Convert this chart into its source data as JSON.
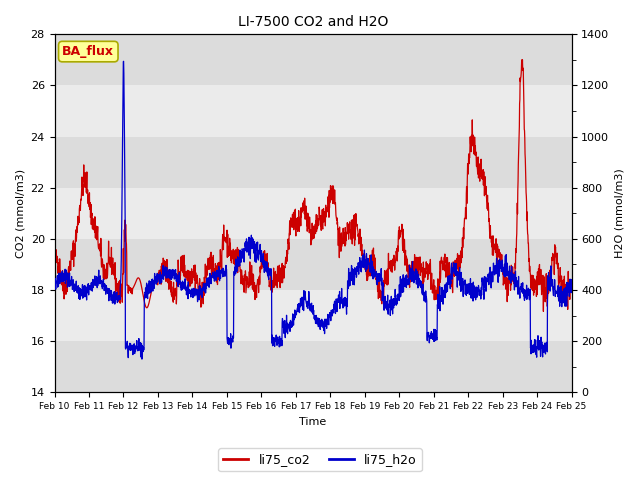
{
  "title": "LI-7500 CO2 and H2O",
  "xlabel": "Time",
  "ylabel_left": "CO2 (mmol/m3)",
  "ylabel_right": "H2O (mmol/m3)",
  "ylim_left": [
    14,
    28
  ],
  "ylim_right": [
    0,
    1400
  ],
  "yticks_left": [
    14,
    16,
    18,
    20,
    22,
    24,
    26,
    28
  ],
  "yticks_right": [
    0,
    200,
    400,
    600,
    800,
    1000,
    1200,
    1400
  ],
  "xtick_labels": [
    "Feb 10",
    "Feb 11",
    "Feb 12",
    "Feb 13",
    "Feb 14",
    "Feb 15",
    "Feb 16",
    "Feb 17",
    "Feb 18",
    "Feb 19",
    "Feb 20",
    "Feb 21",
    "Feb 22",
    "Feb 23",
    "Feb 24",
    "Feb 25"
  ],
  "color_co2": "#cc0000",
  "color_h2o": "#0000cc",
  "legend_label_co2": "li75_co2",
  "legend_label_h2o": "li75_h2o",
  "watermark_text": "BA_flux",
  "watermark_bg": "#ffff99",
  "watermark_fg": "#cc0000",
  "band_colors": [
    "#dcdcdc",
    "#ebebeb",
    "#dcdcdc",
    "#ebebeb",
    "#dcdcdc",
    "#ebebeb",
    "#dcdcdc"
  ],
  "band_edges": [
    14,
    16,
    18,
    20,
    22,
    24,
    26,
    28
  ]
}
